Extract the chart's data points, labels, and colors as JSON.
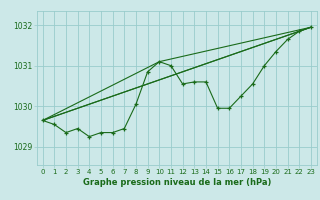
{
  "bg_color": "#cce8e8",
  "grid_color": "#99cccc",
  "line_color": "#1a6b1a",
  "xlabel": "Graphe pression niveau de la mer (hPa)",
  "xlim": [
    -0.5,
    23.5
  ],
  "ylim": [
    1028.55,
    1032.35
  ],
  "yticks": [
    1029,
    1030,
    1031,
    1032
  ],
  "xticks": [
    0,
    1,
    2,
    3,
    4,
    5,
    6,
    7,
    8,
    9,
    10,
    11,
    12,
    13,
    14,
    15,
    16,
    17,
    18,
    19,
    20,
    21,
    22,
    23
  ],
  "series1": [
    1029.65,
    1029.55,
    1029.35,
    1029.45,
    1029.25,
    1029.35,
    1029.35,
    1029.45,
    1030.05,
    1030.85,
    1031.1,
    1031.0,
    1030.55,
    1030.6,
    1030.6,
    1029.95,
    1029.95,
    1030.25,
    1030.55,
    1031.0,
    1031.35,
    1031.65,
    1031.85,
    1031.95
  ],
  "series2_x": [
    0,
    23
  ],
  "series2_y": [
    1029.65,
    1031.95
  ],
  "series3_x": [
    0,
    7,
    23
  ],
  "series3_y": [
    1029.65,
    1030.35,
    1031.95
  ],
  "series4_x": [
    0,
    10,
    23
  ],
  "series4_y": [
    1029.65,
    1031.1,
    1031.95
  ]
}
